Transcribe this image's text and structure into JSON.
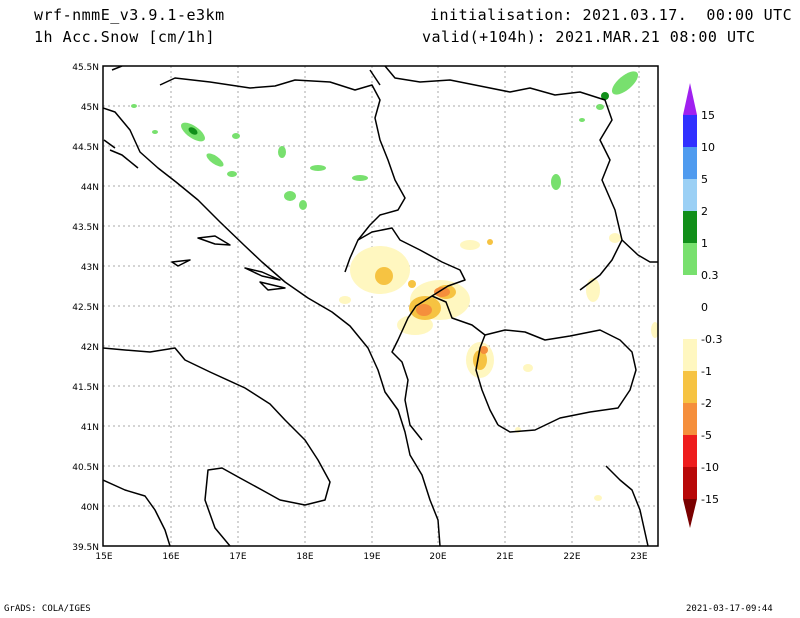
{
  "header": {
    "model": "wrf-nmmE_v3.9.1-e3km",
    "field": "1h Acc.Snow [cm/1h]",
    "init": "initialisation: 2021.03.17.  00:00 UTC",
    "valid": "valid(+104h): 2021.MAR.21 08:00 UTC"
  },
  "map": {
    "lat_ticks": [
      "45.5N",
      "45N",
      "44.5N",
      "44N",
      "43.5N",
      "43N",
      "42.5N",
      "42N",
      "41.5N",
      "41N",
      "40.5N",
      "40N",
      "39.5N"
    ],
    "lon_ticks": [
      "15E",
      "16E",
      "17E",
      "18E",
      "19E",
      "20E",
      "21E",
      "22E",
      "23E"
    ],
    "lon_range": [
      15,
      23.3
    ],
    "lat_range": [
      39.5,
      45.5
    ]
  },
  "colorbar": {
    "labels": [
      "15",
      "10",
      "5",
      "2",
      "1",
      "0.3",
      "0",
      "-0.3",
      "-1",
      "-2",
      "-5",
      "-10",
      "-15"
    ],
    "colors": [
      "#a020f0",
      "#3030ff",
      "#4f9bef",
      "#9bd0f5",
      "#118f1a",
      "#78e06e",
      "#ffffff",
      "#ffffff",
      "#fff7c0",
      "#f6c342",
      "#f58f3c",
      "#ee1c1c",
      "#b80808",
      "#7a0000"
    ]
  },
  "footer": {
    "left": "GrADS: COLA/IGES",
    "right": "2021-03-17-09:44"
  }
}
